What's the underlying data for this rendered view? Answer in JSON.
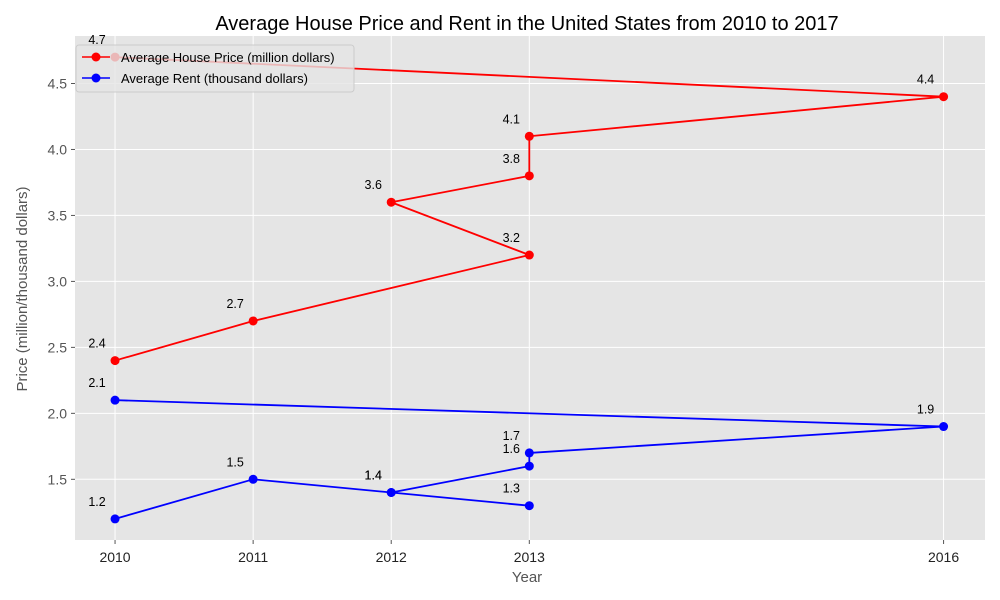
{
  "chart_data": {
    "type": "line",
    "title": "Average House Price and Rent in the United States from 2010 to 2017",
    "xlabel": "Year",
    "ylabel": "Price (million/thousand dollars)",
    "xlim": [
      2009.71,
      2016.3
    ],
    "ylim": [
      1.04,
      4.86
    ],
    "x_ticks": [
      2010,
      2011,
      2012,
      2013,
      2016
    ],
    "x_tick_labels": [
      "2010",
      "2011",
      "2012",
      "2013",
      "2016"
    ],
    "y_ticks": [
      1.5,
      2.0,
      2.5,
      3.0,
      3.5,
      4.0,
      4.5
    ],
    "y_tick_labels": [
      "1.5",
      "2.0",
      "2.5",
      "3.0",
      "3.5",
      "4.0",
      "4.5"
    ],
    "grid": true,
    "legend_position": "top-left",
    "series": [
      {
        "name": "Average House Price (million dollars)",
        "color": "#ff0000",
        "x": [
          2010,
          2011,
          2013,
          2012,
          2013,
          2013,
          2016,
          2010
        ],
        "values": [
          2.4,
          2.7,
          3.2,
          3.6,
          3.8,
          4.1,
          4.4,
          4.7
        ],
        "labels": [
          "2.4",
          "2.7",
          "3.2",
          "3.6",
          "3.8",
          "4.1",
          "4.4",
          "4.7"
        ]
      },
      {
        "name": "Average Rent (thousand dollars)",
        "color": "#0000ff",
        "x": [
          2010,
          2011,
          2012,
          2013,
          2012,
          2013,
          2013,
          2016,
          2010
        ],
        "values": [
          1.2,
          1.5,
          1.4,
          1.3,
          1.4,
          1.6,
          1.7,
          1.9,
          2.1
        ],
        "labels": [
          "1.2",
          "1.5",
          "1.4",
          "1.3",
          "1.4",
          "1.6",
          "1.7",
          "1.9",
          "2.1"
        ]
      }
    ]
  }
}
